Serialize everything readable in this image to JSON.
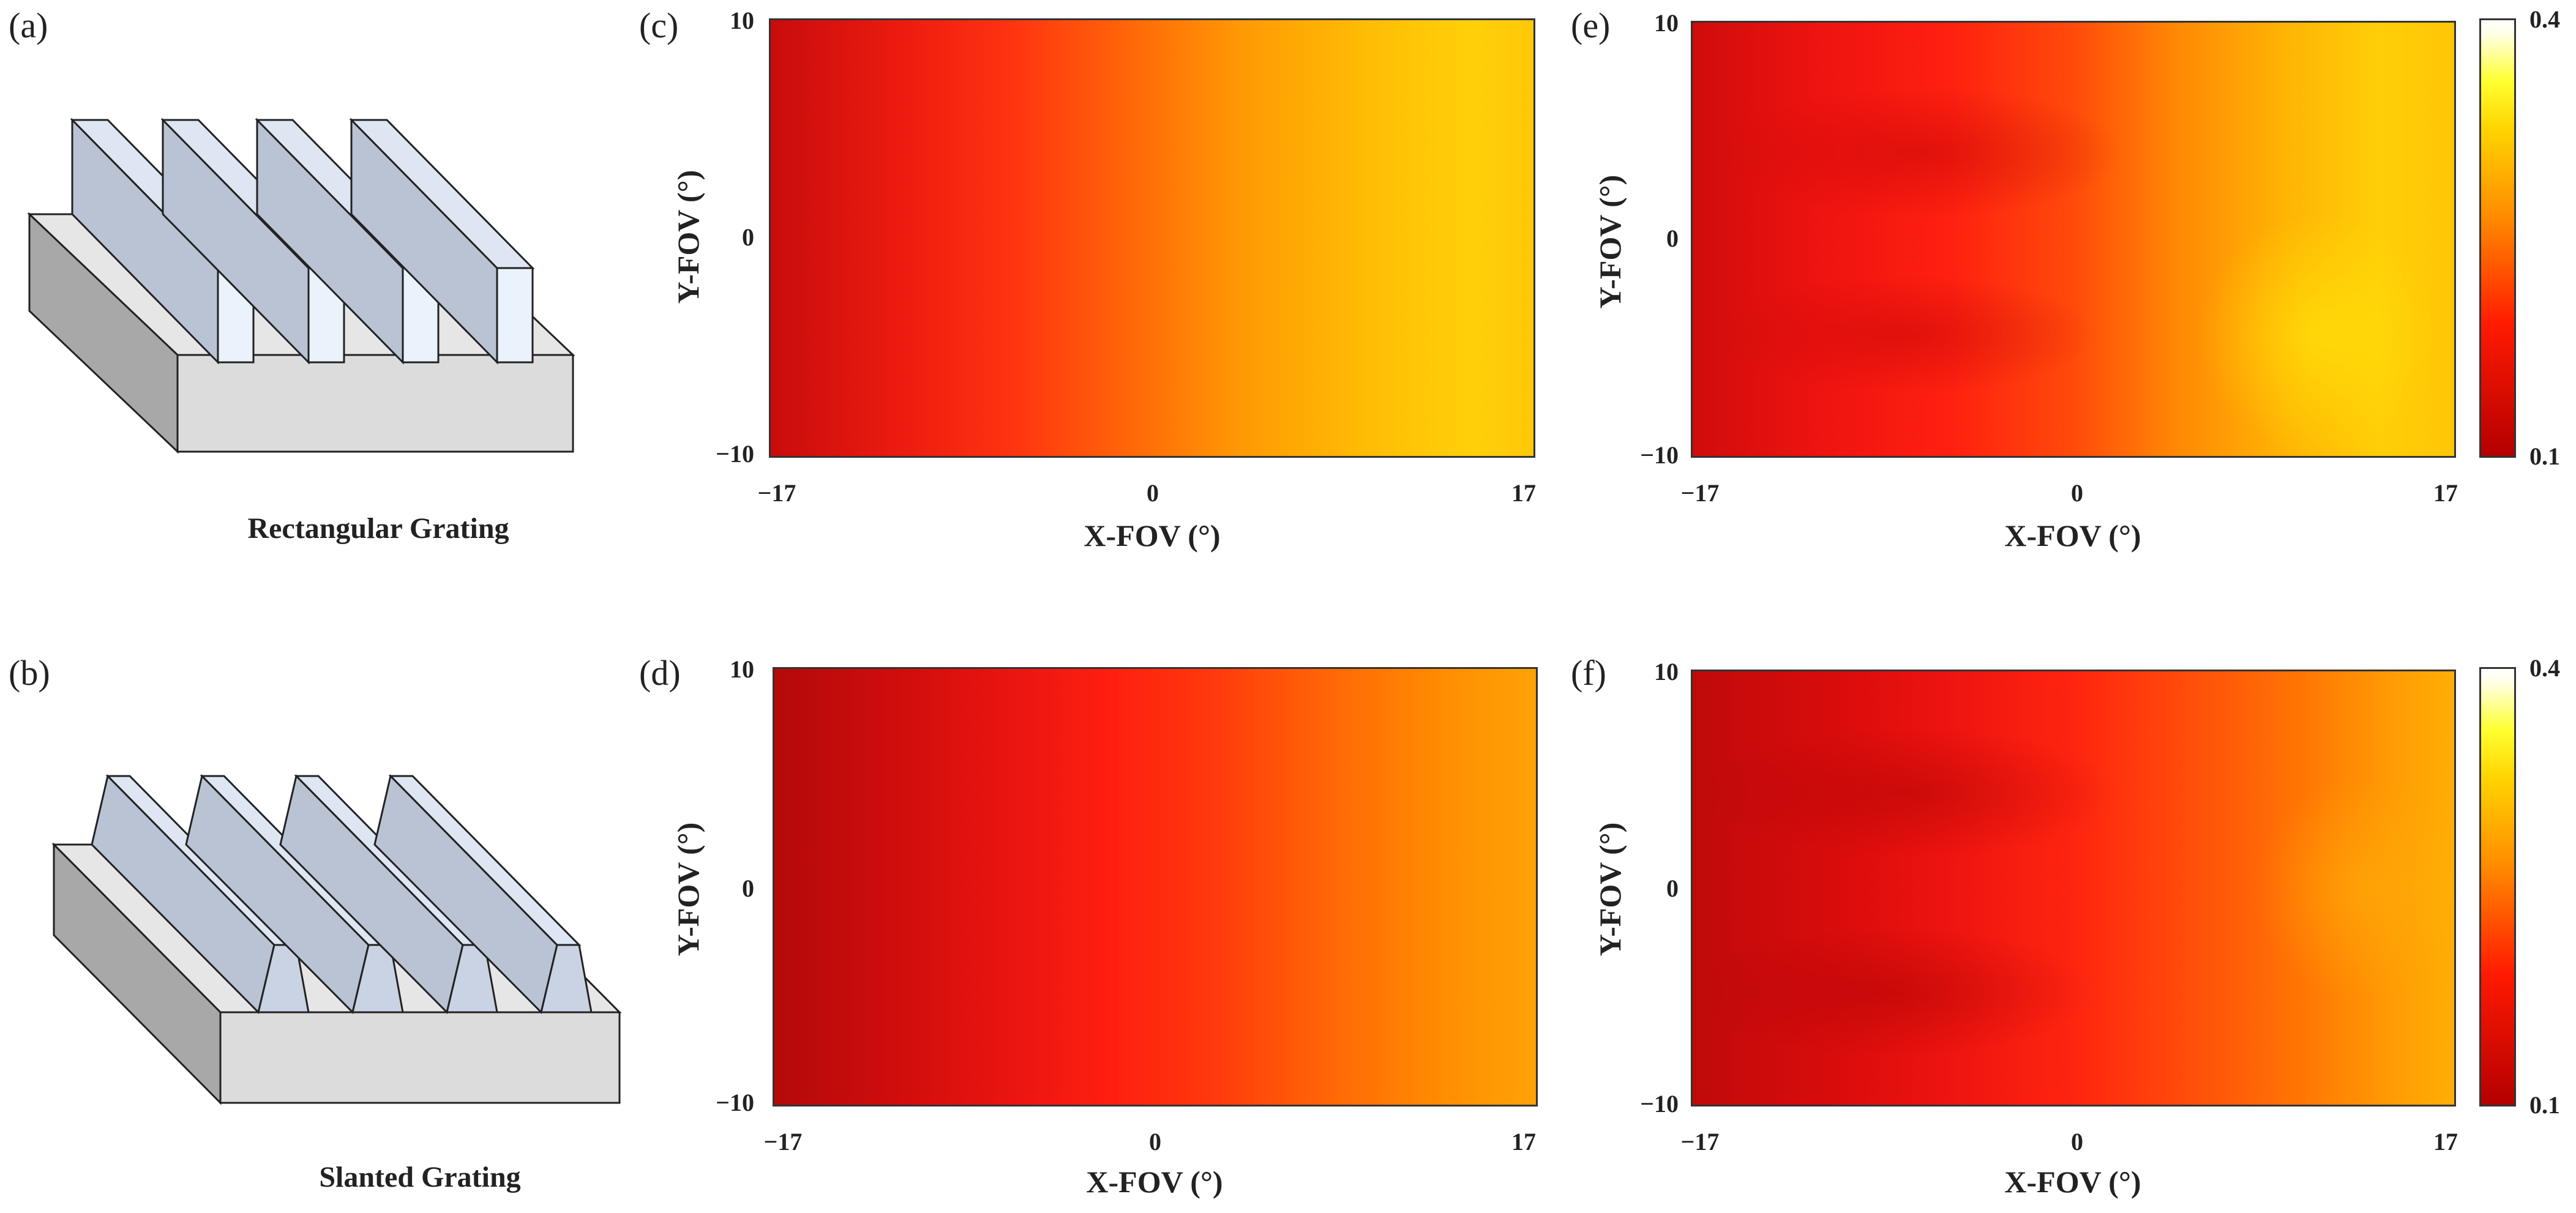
{
  "panels": {
    "a": {
      "label": "(a)",
      "caption": "Rectangular Grating"
    },
    "b": {
      "label": "(b)",
      "caption": "Slanted Grating"
    },
    "c": {
      "label": "(c)"
    },
    "d": {
      "label": "(d)"
    },
    "e": {
      "label": "(e)"
    },
    "f": {
      "label": "(f)"
    }
  },
  "axes": {
    "xlabel": "X-FOV (°)",
    "ylabel": "Y-FOV (°)",
    "xticks": [
      "−17",
      "0",
      "17"
    ],
    "yticks": [
      "10",
      "0",
      "−10"
    ]
  },
  "colorbar": {
    "max_label": "0.4",
    "min_label": "0.1"
  },
  "chart_data": [
    {
      "panel": "c",
      "type": "heatmap",
      "xlim": [
        -17,
        17
      ],
      "ylim": [
        -10,
        10
      ],
      "colorscale_range": [
        0.1,
        0.4
      ],
      "xlabel": "X-FOV (°)",
      "ylabel": "Y-FOV (°)"
    },
    {
      "panel": "d",
      "type": "heatmap",
      "xlim": [
        -17,
        17
      ],
      "ylim": [
        -10,
        10
      ],
      "colorscale_range": [
        0.1,
        0.4
      ],
      "xlabel": "X-FOV (°)",
      "ylabel": "Y-FOV (°)"
    },
    {
      "panel": "e",
      "type": "heatmap",
      "xlim": [
        -17,
        17
      ],
      "ylim": [
        -10,
        10
      ],
      "colorscale_range": [
        0.1,
        0.4
      ],
      "xlabel": "X-FOV (°)",
      "ylabel": "Y-FOV (°)"
    },
    {
      "panel": "f",
      "type": "heatmap",
      "xlim": [
        -17,
        17
      ],
      "ylim": [
        -10,
        10
      ],
      "colorscale_range": [
        0.1,
        0.4
      ],
      "xlabel": "X-FOV (°)",
      "ylabel": "Y-FOV (°)"
    }
  ]
}
